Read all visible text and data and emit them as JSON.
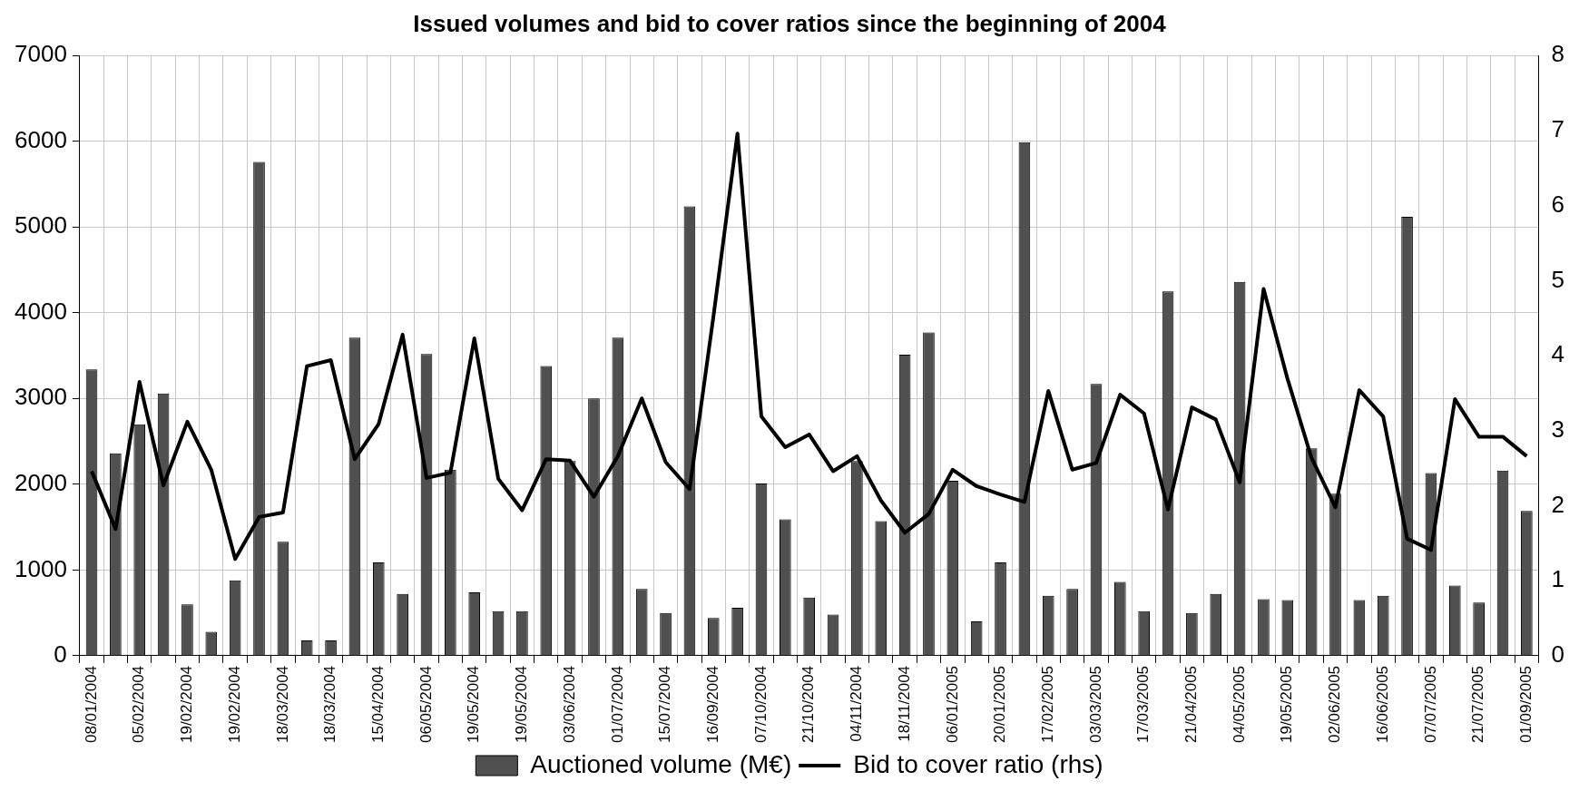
{
  "chart_data": {
    "type": "bar",
    "title": "Issued volumes and bid to cover ratios since the beginning of 2004",
    "categories": [
      "08/01/2004",
      null,
      "05/02/2004",
      null,
      "19/02/2004",
      null,
      "19/02/2004",
      null,
      "18/03/2004",
      null,
      "18/03/2004",
      null,
      "15/04/2004",
      null,
      "06/05/2004",
      null,
      "19/05/2004",
      null,
      "19/05/2004",
      null,
      "03/06/2004",
      null,
      "01/07/2004",
      null,
      "15/07/2004",
      null,
      "16/09/2004",
      null,
      "07/10/2004",
      null,
      "21/10/2004",
      null,
      "04/11/2004",
      null,
      "18/11/2004",
      null,
      "06/01/2005",
      null,
      "20/01/2005",
      null,
      "17/02/2005",
      null,
      "03/03/2005",
      null,
      "17/03/2005",
      null,
      "21/04/2005",
      null,
      "04/05/2005",
      null,
      "19/05/2005",
      null,
      "02/06/2005",
      null,
      "16/06/2005",
      null,
      "07/07/2005",
      null,
      "21/07/2005",
      null,
      "01/09/2005"
    ],
    "series": [
      {
        "name": "Auctioned volume (M€)",
        "type": "bar",
        "color": "#505050",
        "values": [
          3340,
          2360,
          2700,
          3060,
          600,
          280,
          880,
          5760,
          1330,
          180,
          180,
          3710,
          1090,
          720,
          3520,
          2170,
          740,
          520,
          520,
          3380,
          2270,
          3000,
          3710,
          780,
          500,
          5240,
          440,
          560,
          2010,
          1590,
          680,
          480,
          2270,
          1570,
          3510,
          3770,
          2040,
          400,
          1090,
          5990,
          700,
          780,
          3170,
          860,
          520,
          4250,
          500,
          720,
          4360,
          660,
          650,
          2420,
          1890,
          650,
          700,
          5120,
          2130,
          820,
          620,
          2160,
          1690
        ]
      },
      {
        "name": "Bid to cover ratio (rhs)",
        "type": "line",
        "axis": "y2",
        "color": "#000000",
        "values": [
          2.46,
          1.69,
          3.65,
          2.27,
          3.12,
          2.48,
          1.29,
          1.85,
          1.91,
          3.86,
          3.94,
          2.62,
          3.09,
          4.28,
          2.37,
          2.44,
          4.23,
          2.36,
          1.94,
          2.62,
          2.6,
          2.12,
          2.66,
          3.43,
          2.58,
          2.22,
          4.53,
          6.96,
          3.19,
          2.78,
          2.95,
          2.46,
          2.66,
          2.07,
          1.64,
          1.89,
          2.48,
          2.26,
          2.15,
          2.05,
          3.53,
          2.48,
          2.57,
          3.48,
          3.23,
          1.95,
          3.31,
          3.15,
          2.31,
          4.89,
          3.69,
          2.64,
          1.98,
          3.54,
          3.19,
          1.56,
          1.41,
          3.42,
          2.92,
          2.92,
          2.66
        ]
      }
    ],
    "ylim": [
      0,
      7000
    ],
    "yticks": [
      0,
      1000,
      2000,
      3000,
      4000,
      5000,
      6000,
      7000
    ],
    "y2lim": [
      0,
      8
    ],
    "y2ticks": [
      0,
      1,
      2,
      3,
      4,
      5,
      6,
      7,
      8
    ],
    "grid": true,
    "legend": "bottom",
    "marker": "none"
  }
}
